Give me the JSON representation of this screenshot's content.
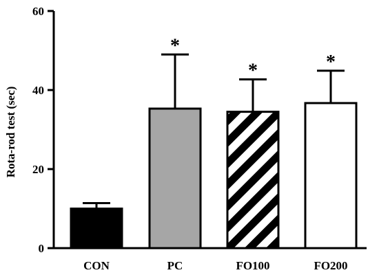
{
  "chart_data": {
    "type": "bar",
    "title": "",
    "xlabel": "",
    "ylabel": "Rota-rod test (sec)",
    "ylim": [
      0,
      60
    ],
    "yticks": [
      0,
      20,
      40,
      60
    ],
    "categories": [
      "CON",
      "PC",
      "FO100",
      "FO200"
    ],
    "values": [
      10,
      35.3,
      34.5,
      36.7
    ],
    "error": [
      1.4,
      13.7,
      8.2,
      8.2
    ],
    "significance": [
      "",
      "*",
      "*",
      "*"
    ],
    "fills": [
      "solid-black",
      "solid-gray",
      "diagonal-stripes",
      "white"
    ],
    "grid": false,
    "legend": "none"
  },
  "colors": {
    "axis": "#000000",
    "con_fill": "#000000",
    "pc_fill": "#a6a6a6",
    "stripe_dark": "#000000",
    "stripe_light": "#ffffff",
    "fo200_fill": "#ffffff"
  }
}
